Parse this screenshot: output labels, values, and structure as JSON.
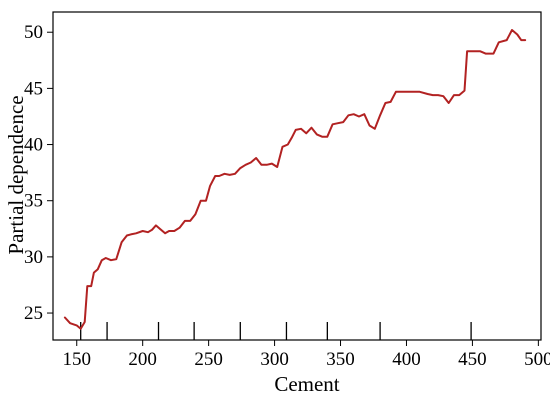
{
  "chart_data": {
    "type": "line",
    "xlabel": "Cement",
    "ylabel": "Partial dependence",
    "xlim": [
      132,
      502
    ],
    "ylim": [
      22.6,
      51.8
    ],
    "x_ticks": [
      150,
      200,
      250,
      300,
      350,
      400,
      450,
      500
    ],
    "y_ticks": [
      25,
      30,
      35,
      40,
      45,
      50
    ],
    "rug_x": [
      153,
      173,
      212,
      239,
      274,
      309,
      340,
      380,
      449
    ],
    "series_color": "#b22222",
    "grid": false,
    "series": [
      {
        "x": [
          141,
          145,
          150,
          153,
          156,
          158,
          161,
          163,
          166,
          169,
          172,
          176,
          180,
          184,
          188,
          191,
          195,
          200,
          204,
          207,
          210,
          213,
          217,
          220,
          224,
          228,
          232,
          236,
          240,
          244,
          248,
          251,
          255,
          258,
          262,
          266,
          270,
          274,
          278,
          282,
          286,
          290,
          294,
          298,
          302,
          306,
          310,
          313,
          316,
          320,
          324,
          328,
          332,
          336,
          340,
          344,
          348,
          352,
          356,
          360,
          364,
          368,
          372,
          376,
          380,
          384,
          388,
          392,
          396,
          400,
          405,
          410,
          416,
          420,
          424,
          428,
          432,
          436,
          440,
          444,
          446,
          448,
          450,
          456,
          460,
          466,
          470,
          476,
          480,
          484,
          487,
          490
        ],
        "y": [
          24.6,
          24.1,
          23.9,
          23.6,
          24.2,
          27.4,
          27.4,
          28.6,
          28.9,
          29.7,
          29.9,
          29.7,
          29.8,
          31.3,
          31.9,
          32.0,
          32.1,
          32.3,
          32.2,
          32.4,
          32.8,
          32.5,
          32.1,
          32.3,
          32.3,
          32.6,
          33.2,
          33.2,
          33.8,
          35.0,
          35.0,
          36.3,
          37.2,
          37.2,
          37.4,
          37.3,
          37.4,
          37.9,
          38.2,
          38.4,
          38.8,
          38.2,
          38.2,
          38.3,
          38.0,
          39.8,
          40.0,
          40.6,
          41.3,
          41.4,
          41.0,
          41.5,
          40.9,
          40.7,
          40.7,
          41.8,
          41.9,
          42.0,
          42.6,
          42.7,
          42.5,
          42.7,
          41.7,
          41.4,
          42.6,
          43.7,
          43.8,
          44.7,
          44.7,
          44.7,
          44.7,
          44.7,
          44.5,
          44.4,
          44.4,
          44.3,
          43.7,
          44.4,
          44.4,
          44.8,
          48.3,
          48.3,
          48.3,
          48.3,
          48.1,
          48.1,
          49.1,
          49.3,
          50.2,
          49.8,
          49.3,
          49.3
        ]
      }
    ]
  }
}
